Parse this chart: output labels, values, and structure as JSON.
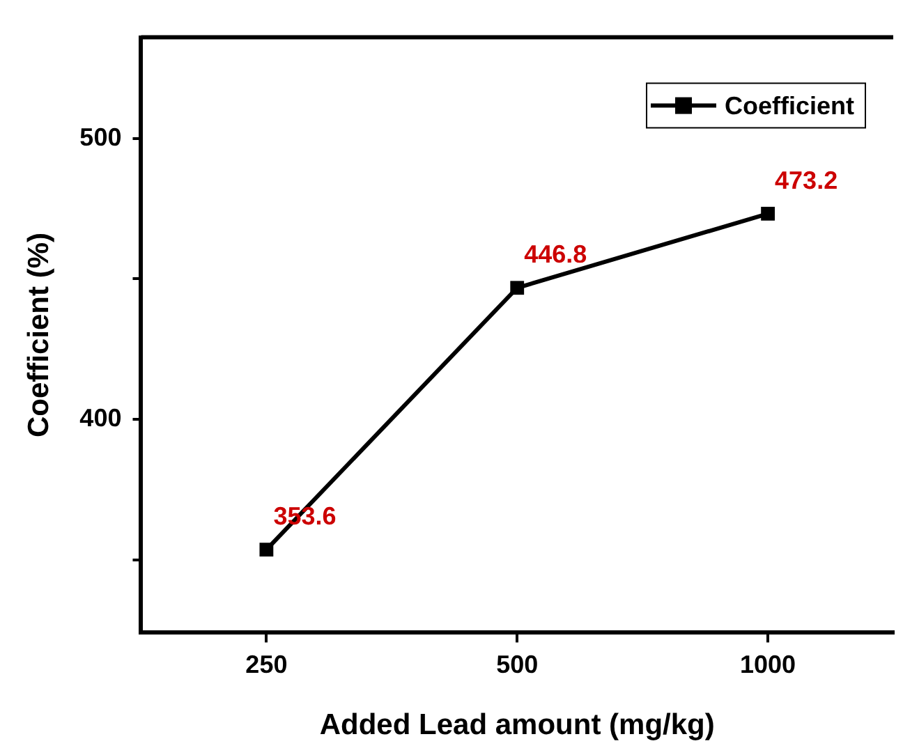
{
  "chart_data": {
    "type": "line",
    "xlabel": "Added Lead amount (mg/kg)",
    "ylabel": "Coefficient (%)",
    "categories": [
      "250",
      "500",
      "1000"
    ],
    "series": [
      {
        "name": "Coefficient",
        "color": "#000000",
        "values": [
          353.6,
          446.8,
          473.2
        ]
      }
    ],
    "ylim": [
      324,
      536
    ],
    "yticks": [
      {
        "value": 350,
        "label": null
      },
      400,
      {
        "value": 450,
        "label": null
      },
      500
    ],
    "data_labels": true,
    "grid": false,
    "legend": "top right",
    "marker": "square",
    "line_style": "solid"
  }
}
